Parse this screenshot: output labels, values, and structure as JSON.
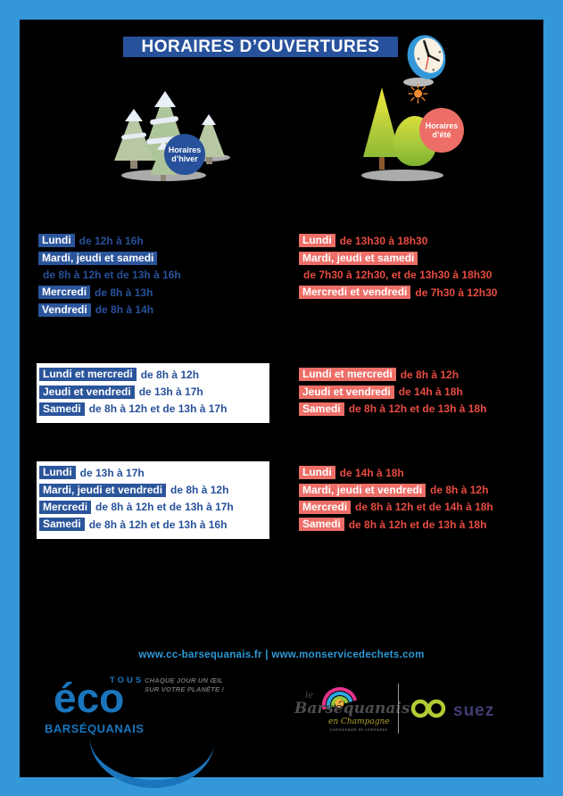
{
  "page": {
    "title": "HORAIRES D’OUVERTURES",
    "frame_color": "#3498d8",
    "background_color": "#000000",
    "title_bg_color": "#27519b"
  },
  "badges": {
    "winter": {
      "line1": "Horaires",
      "line2": "d’hiver",
      "color": "#27519b"
    },
    "summer": {
      "line1": "Horaires",
      "line2": "d’été",
      "color": "#ed6e67"
    }
  },
  "icons": {
    "clock": "clock-icon",
    "sun": "☀",
    "winter_trees": "snowy-pine-trees",
    "summer_trees": "green-trees"
  },
  "schedule": {
    "winter_color": "#27519b",
    "summer_color": "#e84c41",
    "winter": {
      "block1": [
        {
          "label": "Lundi",
          "time": "de 12h à 16h"
        },
        {
          "label": "Mardi, jeudi et samedi",
          "time": ""
        },
        {
          "label": "",
          "time": "de 8h à 12h et de 13h à 16h"
        },
        {
          "label": "Mercredi",
          "time": "de 8h à 13h"
        },
        {
          "label": "Vendredi",
          "time": "de 8h à 14h"
        }
      ],
      "block2": [
        {
          "label": "Lundi et mercredi",
          "time": "de 8h à 12h"
        },
        {
          "label": "Jeudi et vendredi",
          "time": "de 13h à 17h"
        },
        {
          "label": "Samedi",
          "time": "de 8h à 12h et de 13h à 17h"
        }
      ],
      "block3": [
        {
          "label": "Lundi",
          "time": "de 13h à 17h"
        },
        {
          "label": "Mardi, jeudi et vendredi",
          "time": "de 8h à 12h"
        },
        {
          "label": "Mercredi",
          "time": "de 8h à 12h et de 13h à 17h"
        },
        {
          "label": "Samedi",
          "time": "de 8h à 12h et de 13h à 16h"
        }
      ]
    },
    "summer": {
      "block1": [
        {
          "label": "Lundi",
          "time": "de 13h30 à 18h30"
        },
        {
          "label": "Mardi, jeudi et samedi",
          "time": ""
        },
        {
          "label": "",
          "time": "de 7h30 à 12h30, et de 13h30 à 18h30"
        },
        {
          "label": "Mercredi et vendredi",
          "time": "de 7h30 à 12h30"
        }
      ],
      "block2": [
        {
          "label": "Lundi et mercredi",
          "time": "de 8h à 12h"
        },
        {
          "label": "Jeudi et vendredi",
          "time": "de 14h à 18h"
        },
        {
          "label": "Samedi",
          "time": "de 8h à 12h et de 13h à 18h"
        }
      ],
      "block3": [
        {
          "label": "Lundi",
          "time": "de 14h à 18h"
        },
        {
          "label": "Mardi, jeudi et vendredi",
          "time": "de 8h à 12h"
        },
        {
          "label": "Mercredi",
          "time": "de 8h à 12h et de 14h à 18h"
        },
        {
          "label": "Samedi",
          "time": "de 8h à 12h et de 13h à 18h"
        }
      ]
    }
  },
  "footer": {
    "urls": "www.cc-barsequanais.fr | www.monservicedechets.com",
    "urls_color": "#2e9ad6",
    "eco_logo": {
      "top": "TOUS",
      "main": "éco",
      "bottom": "BARSÉQUANAIS",
      "tagline_line1": "CHAQUE JOUR UN ŒIL",
      "tagline_line2": "SUR VOTRE PLANÈTE !",
      "color": "#1a75bc"
    },
    "barsequanais_logo": {
      "le": "le",
      "name": "Barséquanais",
      "sub": "en Champagne",
      "caption": "communauté de communes"
    },
    "suez_logo": {
      "text": "suez",
      "text_color": "#3f3d73",
      "mark_color": "#b2cb36"
    }
  }
}
